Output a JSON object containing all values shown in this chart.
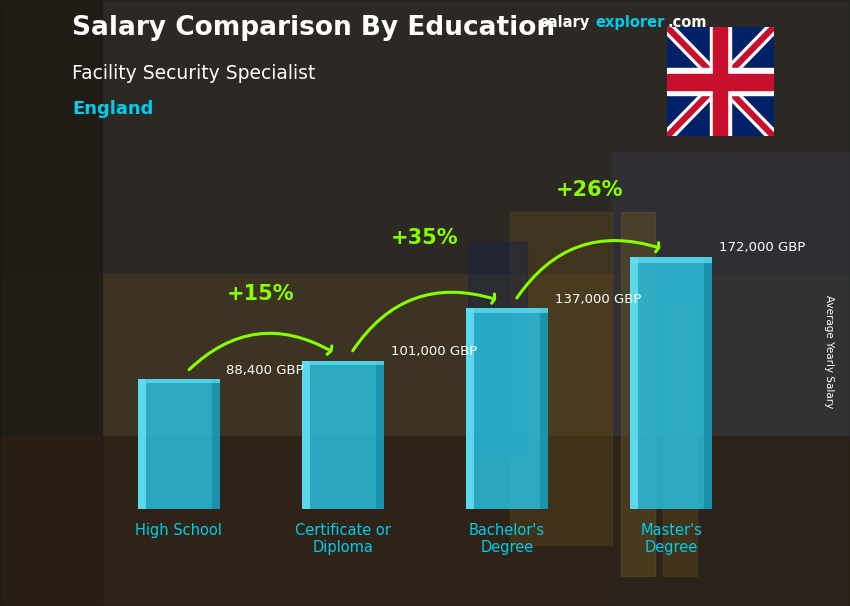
{
  "title_main": "Salary Comparison By Education",
  "subtitle": "Facility Security Specialist",
  "location": "England",
  "categories": [
    "High School",
    "Certificate or\nDiploma",
    "Bachelor's\nDegree",
    "Master's\nDegree"
  ],
  "values": [
    88400,
    101000,
    137000,
    172000
  ],
  "value_labels": [
    "88,400 GBP",
    "101,000 GBP",
    "137,000 GBP",
    "172,000 GBP"
  ],
  "pct_labels": [
    "+15%",
    "+35%",
    "+26%"
  ],
  "bar_color_main": "#29c5e6",
  "bar_color_light": "#60ddf0",
  "bar_color_dark": "#1a8faa",
  "bar_alpha": 0.82,
  "bg_color_left": "#4a3a28",
  "bg_color_right": "#3a4050",
  "bg_color_bottom": "#2a2218",
  "title_color": "#ffffff",
  "subtitle_color": "#ffffff",
  "location_color": "#00ccee",
  "value_label_color": "#ffffff",
  "xlabel_color": "#00ccee",
  "pct_color": "#88ff00",
  "arrow_color": "#88ff00",
  "ylabel": "Average Yearly Salary",
  "brand_salary_color": "#ffffff",
  "brand_explorer_color": "#00ccee",
  "brand_com_color": "#ffffff",
  "ylim_max": 215000,
  "bar_width": 0.5
}
